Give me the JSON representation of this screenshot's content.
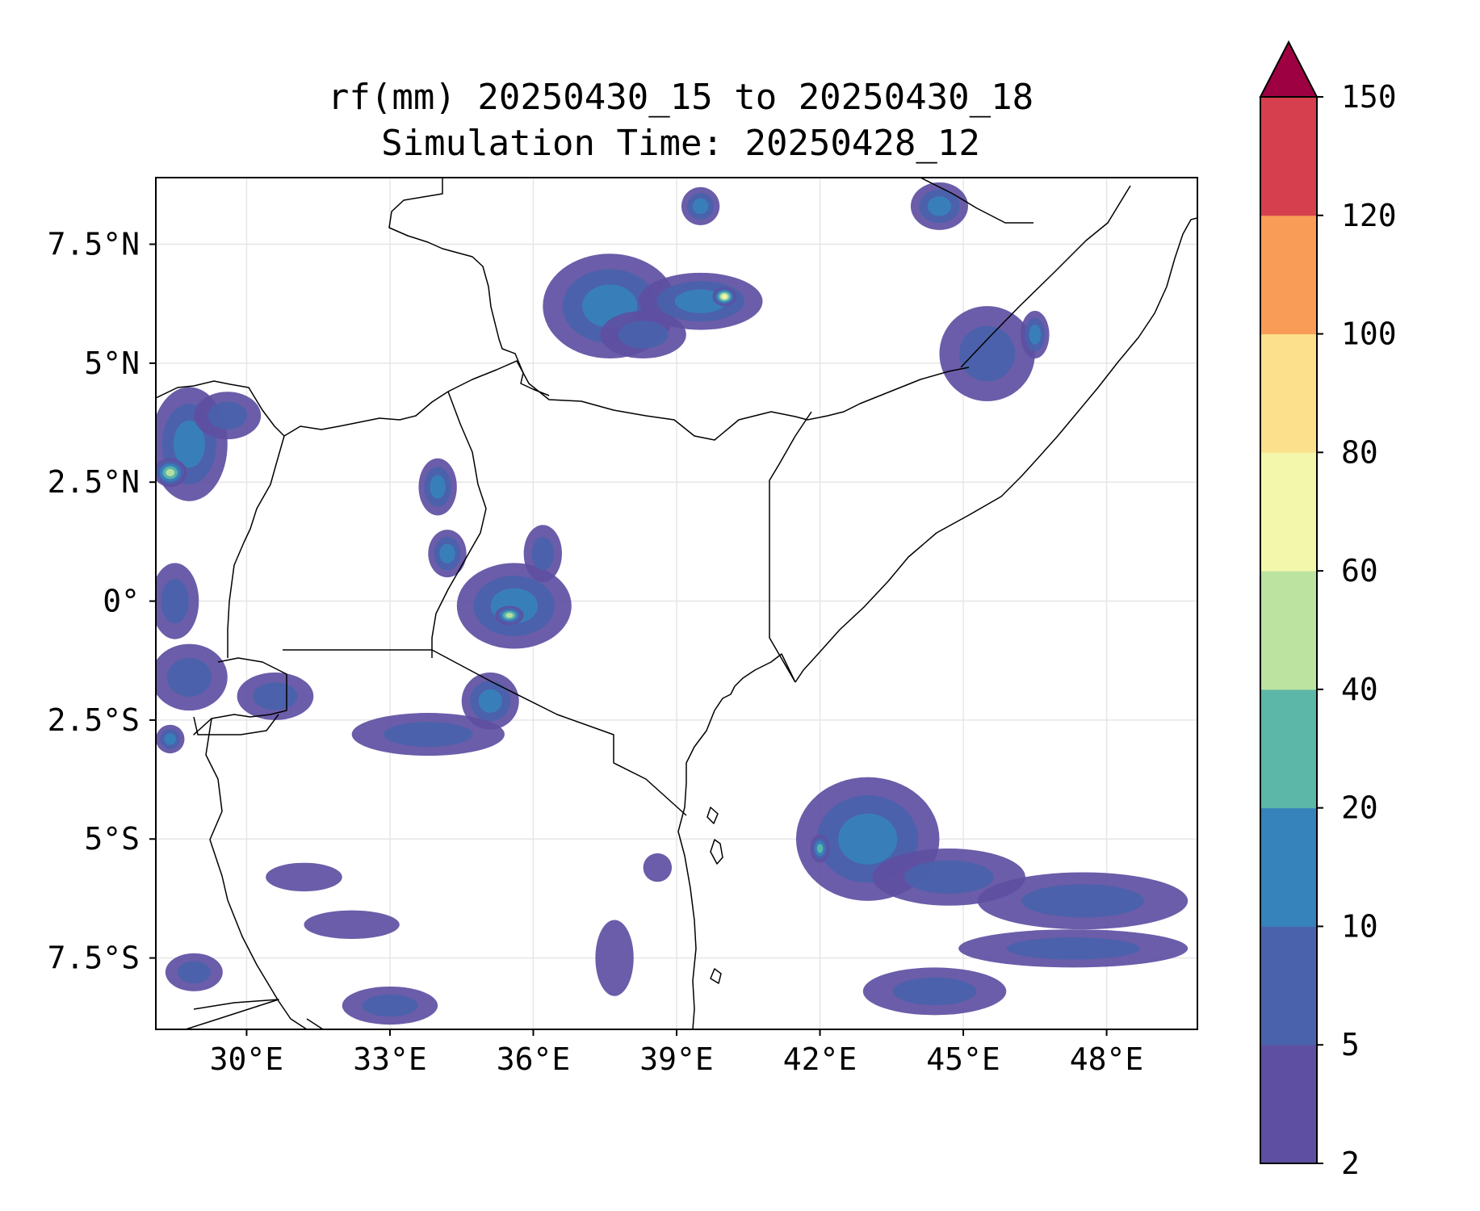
{
  "title": {
    "line1": "rf(mm) 20250430_15 to 20250430_18",
    "line2": "Simulation Time: 20250428_12"
  },
  "map": {
    "extent": {
      "lon": [
        28.1,
        49.9
      ],
      "lat": [
        -9.0,
        8.9
      ]
    },
    "x_ticks": [
      {
        "lon": 30,
        "label": "30°E"
      },
      {
        "lon": 33,
        "label": "33°E"
      },
      {
        "lon": 36,
        "label": "36°E"
      },
      {
        "lon": 39,
        "label": "39°E"
      },
      {
        "lon": 42,
        "label": "42°E"
      },
      {
        "lon": 45,
        "label": "45°E"
      },
      {
        "lon": 48,
        "label": "48°E"
      }
    ],
    "y_ticks": [
      {
        "lat": 7.5,
        "label": "7.5°N"
      },
      {
        "lat": 5,
        "label": "5°N"
      },
      {
        "lat": 2.5,
        "label": "2.5°N"
      },
      {
        "lat": 0,
        "label": "0°"
      },
      {
        "lat": -2.5,
        "label": "2.5°S"
      },
      {
        "lat": -5,
        "label": "5°S"
      },
      {
        "lat": -7.5,
        "label": "7.5°S"
      }
    ],
    "gridlines": true
  },
  "colorbar": {
    "levels": [
      "2",
      "5",
      "10",
      "20",
      "40",
      "60",
      "80",
      "100",
      "120",
      "150"
    ],
    "colors": [
      "#5e4fa2",
      "#4a62ab",
      "#3682ba",
      "#5cb7a9",
      "#bde3a0",
      "#f2f7ac",
      "#fde08b",
      "#f99c58",
      "#d6404e"
    ],
    "extend_color": "#9e0142",
    "extend": "max"
  },
  "rain_areas": [
    {
      "lon": 28.8,
      "lat": 3.3,
      "rx": 0.8,
      "ry": 1.2,
      "level": 2
    },
    {
      "lon": 28.4,
      "lat": 2.7,
      "rx": 0.35,
      "ry": 0.3,
      "level": 4
    },
    {
      "lon": 29.6,
      "lat": 3.9,
      "rx": 0.7,
      "ry": 0.5,
      "level": 1
    },
    {
      "lon": 28.5,
      "lat": 0.0,
      "rx": 0.5,
      "ry": 0.8,
      "level": 1
    },
    {
      "lon": 28.8,
      "lat": -1.6,
      "rx": 0.8,
      "ry": 0.7,
      "level": 1
    },
    {
      "lon": 28.4,
      "lat": -2.9,
      "rx": 0.3,
      "ry": 0.3,
      "level": 2
    },
    {
      "lon": 30.6,
      "lat": -2.0,
      "rx": 0.8,
      "ry": 0.5,
      "level": 1
    },
    {
      "lon": 33.8,
      "lat": -2.8,
      "rx": 1.6,
      "ry": 0.45,
      "level": 1
    },
    {
      "lon": 35.1,
      "lat": -2.1,
      "rx": 0.6,
      "ry": 0.6,
      "level": 2
    },
    {
      "lon": 34.0,
      "lat": 2.4,
      "rx": 0.4,
      "ry": 0.6,
      "level": 2
    },
    {
      "lon": 34.2,
      "lat": 1.0,
      "rx": 0.4,
      "ry": 0.5,
      "level": 2
    },
    {
      "lon": 35.6,
      "lat": -0.1,
      "rx": 1.2,
      "ry": 0.9,
      "level": 2
    },
    {
      "lon": 35.5,
      "lat": -0.3,
      "rx": 0.3,
      "ry": 0.2,
      "level": 4
    },
    {
      "lon": 36.2,
      "lat": 1.0,
      "rx": 0.4,
      "ry": 0.6,
      "level": 1
    },
    {
      "lon": 37.6,
      "lat": 6.2,
      "rx": 1.4,
      "ry": 1.1,
      "level": 2
    },
    {
      "lon": 39.5,
      "lat": 6.3,
      "rx": 1.3,
      "ry": 0.6,
      "level": 2
    },
    {
      "lon": 40.0,
      "lat": 6.4,
      "rx": 0.25,
      "ry": 0.2,
      "level": 5
    },
    {
      "lon": 38.3,
      "lat": 5.6,
      "rx": 0.9,
      "ry": 0.5,
      "level": 1
    },
    {
      "lon": 39.5,
      "lat": 8.3,
      "rx": 0.4,
      "ry": 0.4,
      "level": 2
    },
    {
      "lon": 44.5,
      "lat": 8.3,
      "rx": 0.6,
      "ry": 0.5,
      "level": 2
    },
    {
      "lon": 45.5,
      "lat": 5.2,
      "rx": 1.0,
      "ry": 1.0,
      "level": 1
    },
    {
      "lon": 46.5,
      "lat": 5.6,
      "rx": 0.3,
      "ry": 0.5,
      "level": 2
    },
    {
      "lon": 43.0,
      "lat": -5.0,
      "rx": 1.5,
      "ry": 1.3,
      "level": 2
    },
    {
      "lon": 42.0,
      "lat": -5.2,
      "rx": 0.2,
      "ry": 0.3,
      "level": 3
    },
    {
      "lon": 44.7,
      "lat": -5.8,
      "rx": 1.6,
      "ry": 0.6,
      "level": 1
    },
    {
      "lon": 47.5,
      "lat": -6.3,
      "rx": 2.2,
      "ry": 0.6,
      "level": 1
    },
    {
      "lon": 47.3,
      "lat": -7.3,
      "rx": 2.4,
      "ry": 0.4,
      "level": 1
    },
    {
      "lon": 44.4,
      "lat": -8.2,
      "rx": 1.5,
      "ry": 0.5,
      "level": 1
    },
    {
      "lon": 28.9,
      "lat": -7.8,
      "rx": 0.6,
      "ry": 0.4,
      "level": 1
    },
    {
      "lon": 31.2,
      "lat": -5.8,
      "rx": 0.8,
      "ry": 0.3,
      "level": 0
    },
    {
      "lon": 32.2,
      "lat": -6.8,
      "rx": 1.0,
      "ry": 0.3,
      "level": 0
    },
    {
      "lon": 33.0,
      "lat": -8.5,
      "rx": 1.0,
      "ry": 0.4,
      "level": 1
    },
    {
      "lon": 37.7,
      "lat": -7.5,
      "rx": 0.4,
      "ry": 0.8,
      "level": 0
    },
    {
      "lon": 38.6,
      "lat": -5.6,
      "rx": 0.3,
      "ry": 0.3,
      "level": 0
    }
  ]
}
